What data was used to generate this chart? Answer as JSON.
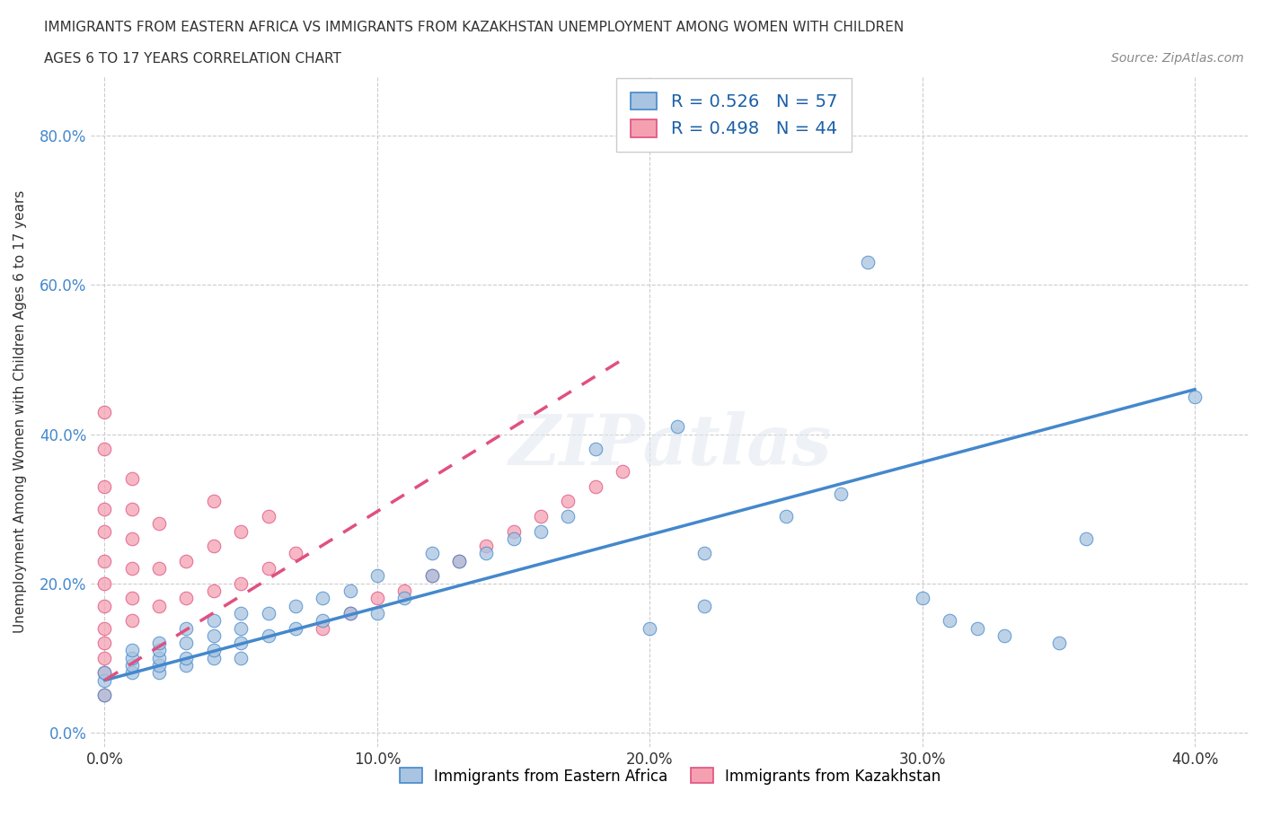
{
  "title_line1": "IMMIGRANTS FROM EASTERN AFRICA VS IMMIGRANTS FROM KAZAKHSTAN UNEMPLOYMENT AMONG WOMEN WITH CHILDREN",
  "title_line2": "AGES 6 TO 17 YEARS CORRELATION CHART",
  "source": "Source: ZipAtlas.com",
  "ylabel": "Unemployment Among Women with Children Ages 6 to 17 years",
  "r_eastern": 0.526,
  "n_eastern": 57,
  "r_kazakhstan": 0.498,
  "n_kazakhstan": 44,
  "color_eastern": "#a8c4e0",
  "color_kazakhstan": "#f4a0b0",
  "line_color_eastern": "#4488cc",
  "line_color_kazakhstan": "#e05080",
  "watermark": "ZIPatlas",
  "xlim": [
    -0.005,
    0.42
  ],
  "ylim": [
    -0.02,
    0.88
  ],
  "xticks": [
    0.0,
    0.1,
    0.2,
    0.3,
    0.4
  ],
  "yticks": [
    0.0,
    0.2,
    0.4,
    0.6,
    0.8
  ],
  "eastern_africa_x": [
    0.0,
    0.0,
    0.0,
    0.01,
    0.01,
    0.01,
    0.01,
    0.02,
    0.02,
    0.02,
    0.02,
    0.02,
    0.03,
    0.03,
    0.03,
    0.03,
    0.04,
    0.04,
    0.04,
    0.04,
    0.05,
    0.05,
    0.05,
    0.05,
    0.06,
    0.06,
    0.07,
    0.07,
    0.08,
    0.08,
    0.09,
    0.09,
    0.1,
    0.1,
    0.11,
    0.12,
    0.12,
    0.13,
    0.14,
    0.15,
    0.16,
    0.17,
    0.18,
    0.2,
    0.21,
    0.22,
    0.22,
    0.25,
    0.27,
    0.28,
    0.3,
    0.31,
    0.32,
    0.33,
    0.35,
    0.36,
    0.4
  ],
  "eastern_africa_y": [
    0.05,
    0.07,
    0.08,
    0.08,
    0.09,
    0.1,
    0.11,
    0.08,
    0.09,
    0.1,
    0.11,
    0.12,
    0.09,
    0.1,
    0.12,
    0.14,
    0.1,
    0.11,
    0.13,
    0.15,
    0.1,
    0.12,
    0.14,
    0.16,
    0.13,
    0.16,
    0.14,
    0.17,
    0.15,
    0.18,
    0.16,
    0.19,
    0.16,
    0.21,
    0.18,
    0.21,
    0.24,
    0.23,
    0.24,
    0.26,
    0.27,
    0.29,
    0.38,
    0.14,
    0.41,
    0.24,
    0.17,
    0.29,
    0.32,
    0.63,
    0.18,
    0.15,
    0.14,
    0.13,
    0.12,
    0.26,
    0.45
  ],
  "kazakhstan_x": [
    0.0,
    0.0,
    0.0,
    0.0,
    0.0,
    0.0,
    0.0,
    0.0,
    0.0,
    0.0,
    0.0,
    0.0,
    0.0,
    0.01,
    0.01,
    0.01,
    0.01,
    0.01,
    0.01,
    0.02,
    0.02,
    0.02,
    0.03,
    0.03,
    0.04,
    0.04,
    0.04,
    0.05,
    0.05,
    0.06,
    0.06,
    0.07,
    0.08,
    0.09,
    0.1,
    0.11,
    0.12,
    0.13,
    0.14,
    0.15,
    0.16,
    0.17,
    0.18,
    0.19
  ],
  "kazakhstan_y": [
    0.05,
    0.08,
    0.1,
    0.12,
    0.14,
    0.17,
    0.2,
    0.23,
    0.27,
    0.3,
    0.33,
    0.38,
    0.43,
    0.15,
    0.18,
    0.22,
    0.26,
    0.3,
    0.34,
    0.17,
    0.22,
    0.28,
    0.18,
    0.23,
    0.19,
    0.25,
    0.31,
    0.2,
    0.27,
    0.22,
    0.29,
    0.24,
    0.14,
    0.16,
    0.18,
    0.19,
    0.21,
    0.23,
    0.25,
    0.27,
    0.29,
    0.31,
    0.33,
    0.35
  ],
  "ea_line_x": [
    0.0,
    0.4
  ],
  "ea_line_y": [
    0.07,
    0.46
  ],
  "kz_line_x": [
    0.0,
    0.19
  ],
  "kz_line_y": [
    0.07,
    0.5
  ]
}
